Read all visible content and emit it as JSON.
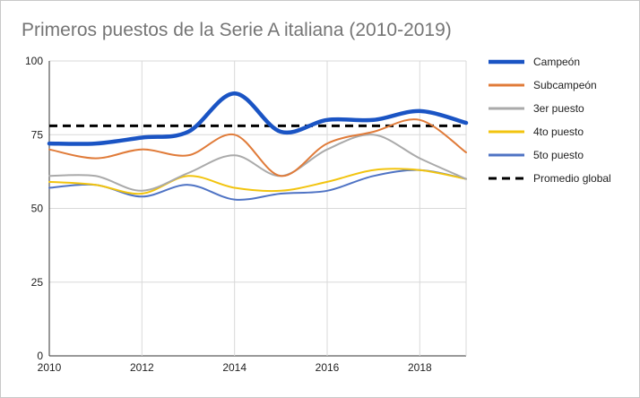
{
  "chart_data": {
    "type": "line",
    "title": "Primeros puestos de la Serie A italiana (2010-2019)",
    "xlabel": "",
    "ylabel": "",
    "x": [
      2010,
      2011,
      2012,
      2013,
      2014,
      2015,
      2016,
      2017,
      2018,
      2019
    ],
    "xticks": [
      2010,
      2012,
      2014,
      2016,
      2018
    ],
    "yticks": [
      0,
      25,
      50,
      75,
      100
    ],
    "xlim": [
      2010,
      2019
    ],
    "ylim": [
      0,
      100
    ],
    "grid": "horizontal",
    "legend_position": "right",
    "series": [
      {
        "name": "Campeón",
        "values": [
          72,
          72,
          74,
          76,
          89,
          76,
          80,
          80,
          83,
          79
        ],
        "color": "#1a54c4",
        "style": "solid",
        "weight": "bold"
      },
      {
        "name": "Subcampeón",
        "values": [
          70,
          67,
          70,
          68,
          75,
          61,
          72,
          76,
          80,
          69
        ],
        "color": "#e07b39",
        "style": "solid",
        "weight": "normal"
      },
      {
        "name": "3er puesto",
        "values": [
          61,
          61,
          56,
          62,
          68,
          61,
          70,
          75,
          67,
          60
        ],
        "color": "#aaaaaa",
        "style": "solid",
        "weight": "normal"
      },
      {
        "name": "4to puesto",
        "values": [
          59,
          58,
          55,
          61,
          57,
          56,
          59,
          63,
          63,
          60
        ],
        "color": "#f2c40f",
        "style": "solid",
        "weight": "normal"
      },
      {
        "name": "5to puesto",
        "values": [
          57,
          58,
          54,
          58,
          53,
          55,
          56,
          61,
          63,
          60
        ],
        "color": "#4f73c4",
        "style": "solid",
        "weight": "normal"
      },
      {
        "name": "Promedio global",
        "values": [
          78,
          78,
          78,
          78,
          78,
          78,
          78,
          78,
          78,
          78
        ],
        "color": "#000000",
        "style": "dashed",
        "weight": "normal"
      }
    ]
  }
}
